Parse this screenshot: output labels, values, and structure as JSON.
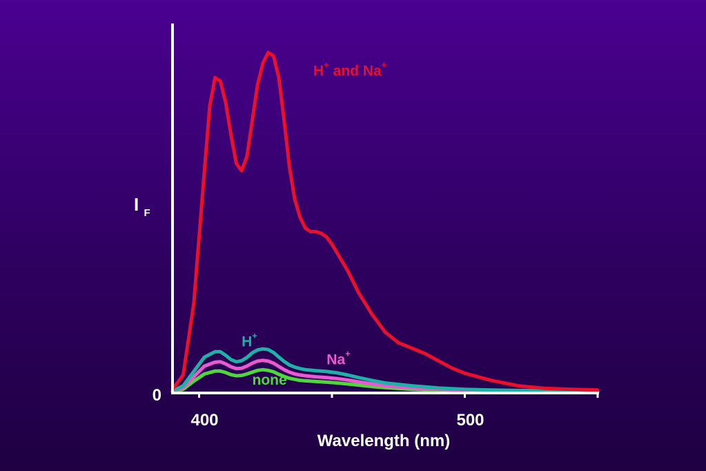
{
  "chart_data": {
    "type": "line",
    "title": "",
    "xlabel": "Wavelength (nm)",
    "ylabel": {
      "main": "I",
      "sub": "F"
    },
    "xlim": [
      390,
      550
    ],
    "ylim": [
      0,
      100
    ],
    "x_ticks": [
      {
        "value": 400,
        "label": "400"
      },
      {
        "value": 450,
        "label": ""
      },
      {
        "value": 500,
        "label": "500"
      },
      {
        "value": 550,
        "label": ""
      }
    ],
    "y_ticks": [
      {
        "value": 0,
        "label": "0"
      }
    ],
    "grid": false,
    "series": [
      {
        "name": "H+ and Na+",
        "label_main": "H",
        "label_sup": "+",
        "label_mid": " and Na",
        "label_sup2": "+",
        "label_at": [
          443,
          88.5
        ],
        "color": "#e8102a",
        "x": [
          390,
          394,
          398,
          402,
          404,
          406,
          408,
          410,
          412,
          414,
          416,
          418,
          420,
          422,
          424,
          426,
          428,
          430,
          432,
          434,
          436,
          438,
          440,
          442,
          444,
          446,
          448,
          450,
          452,
          454,
          456,
          458,
          460,
          465,
          470,
          475,
          480,
          485,
          490,
          495,
          500,
          510,
          520,
          530,
          540,
          550
        ],
        "y": [
          1,
          5,
          25,
          62,
          80,
          88,
          87,
          81,
          72,
          64,
          62,
          66,
          76,
          86,
          92,
          95,
          94,
          88,
          76,
          63,
          54,
          49,
          46,
          45,
          45,
          44.5,
          43.5,
          41.5,
          39,
          36.5,
          34,
          31,
          28,
          22,
          17,
          14,
          12.5,
          11,
          9,
          7,
          5.5,
          3.5,
          2,
          1.3,
          1,
          0.8
        ]
      },
      {
        "name": "H+",
        "label_main": "H",
        "label_sup": "+",
        "label_at": [
          416,
          13
        ],
        "color": "#1fb0a6",
        "x": [
          390,
          394,
          398,
          402,
          406,
          408,
          410,
          412,
          414,
          416,
          418,
          420,
          422,
          424,
          426,
          428,
          430,
          432,
          434,
          436,
          438,
          440,
          444,
          448,
          452,
          456,
          460,
          465,
          470,
          480,
          490,
          500,
          510,
          520,
          530,
          540,
          550
        ],
        "y": [
          0.5,
          2,
          6,
          10,
          11.5,
          11.5,
          10.5,
          9.3,
          8.7,
          9,
          9.9,
          11.2,
          12,
          12.3,
          12.1,
          11.3,
          10,
          8.8,
          7.8,
          7.2,
          6.8,
          6.5,
          6.2,
          6,
          5.6,
          5,
          4.3,
          3.5,
          2.8,
          2,
          1.4,
          1,
          0.8,
          0.7,
          0.6,
          0.6,
          0.6
        ]
      },
      {
        "name": "Na+",
        "label_main": "Na",
        "label_sup": "+",
        "label_at": [
          448,
          8
        ],
        "color": "#e85ad0",
        "x": [
          390,
          394,
          398,
          402,
          406,
          408,
          410,
          412,
          414,
          416,
          418,
          420,
          422,
          424,
          426,
          428,
          430,
          432,
          434,
          436,
          438,
          440,
          444,
          448,
          452,
          456,
          460,
          465,
          470,
          480,
          490,
          500,
          510,
          520,
          530,
          540,
          550
        ],
        "y": [
          0.4,
          1.5,
          4.5,
          7.5,
          8.6,
          8.7,
          8.1,
          7.3,
          6.8,
          6.9,
          7.5,
          8.3,
          8.9,
          9.1,
          8.9,
          8.3,
          7.4,
          6.5,
          5.8,
          5.3,
          5,
          4.8,
          4.5,
          4.3,
          4,
          3.6,
          3.1,
          2.5,
          2,
          1.4,
          1,
          0.7,
          0.6,
          0.5,
          0.5,
          0.5,
          0.5
        ]
      },
      {
        "name": "none",
        "label_main": "none",
        "label_at": [
          420,
          2.3
        ],
        "color": "#4fd83c",
        "x": [
          390,
          394,
          398,
          402,
          406,
          408,
          410,
          412,
          414,
          416,
          418,
          420,
          422,
          424,
          426,
          428,
          430,
          432,
          434,
          436,
          438,
          440,
          444,
          448,
          452,
          456,
          460,
          465,
          470,
          480,
          490,
          500,
          510,
          520,
          530,
          540,
          550
        ],
        "y": [
          0.3,
          1,
          3.3,
          5.3,
          6.1,
          6.1,
          5.7,
          5.1,
          4.8,
          4.9,
          5.3,
          5.8,
          6.3,
          6.5,
          6.3,
          5.9,
          5.2,
          4.6,
          4.1,
          3.8,
          3.5,
          3.4,
          3.2,
          3,
          2.8,
          2.5,
          2.2,
          1.8,
          1.5,
          1,
          0.7,
          0.5,
          0.4,
          0.35,
          0.3,
          0.3,
          0.3
        ]
      }
    ]
  }
}
